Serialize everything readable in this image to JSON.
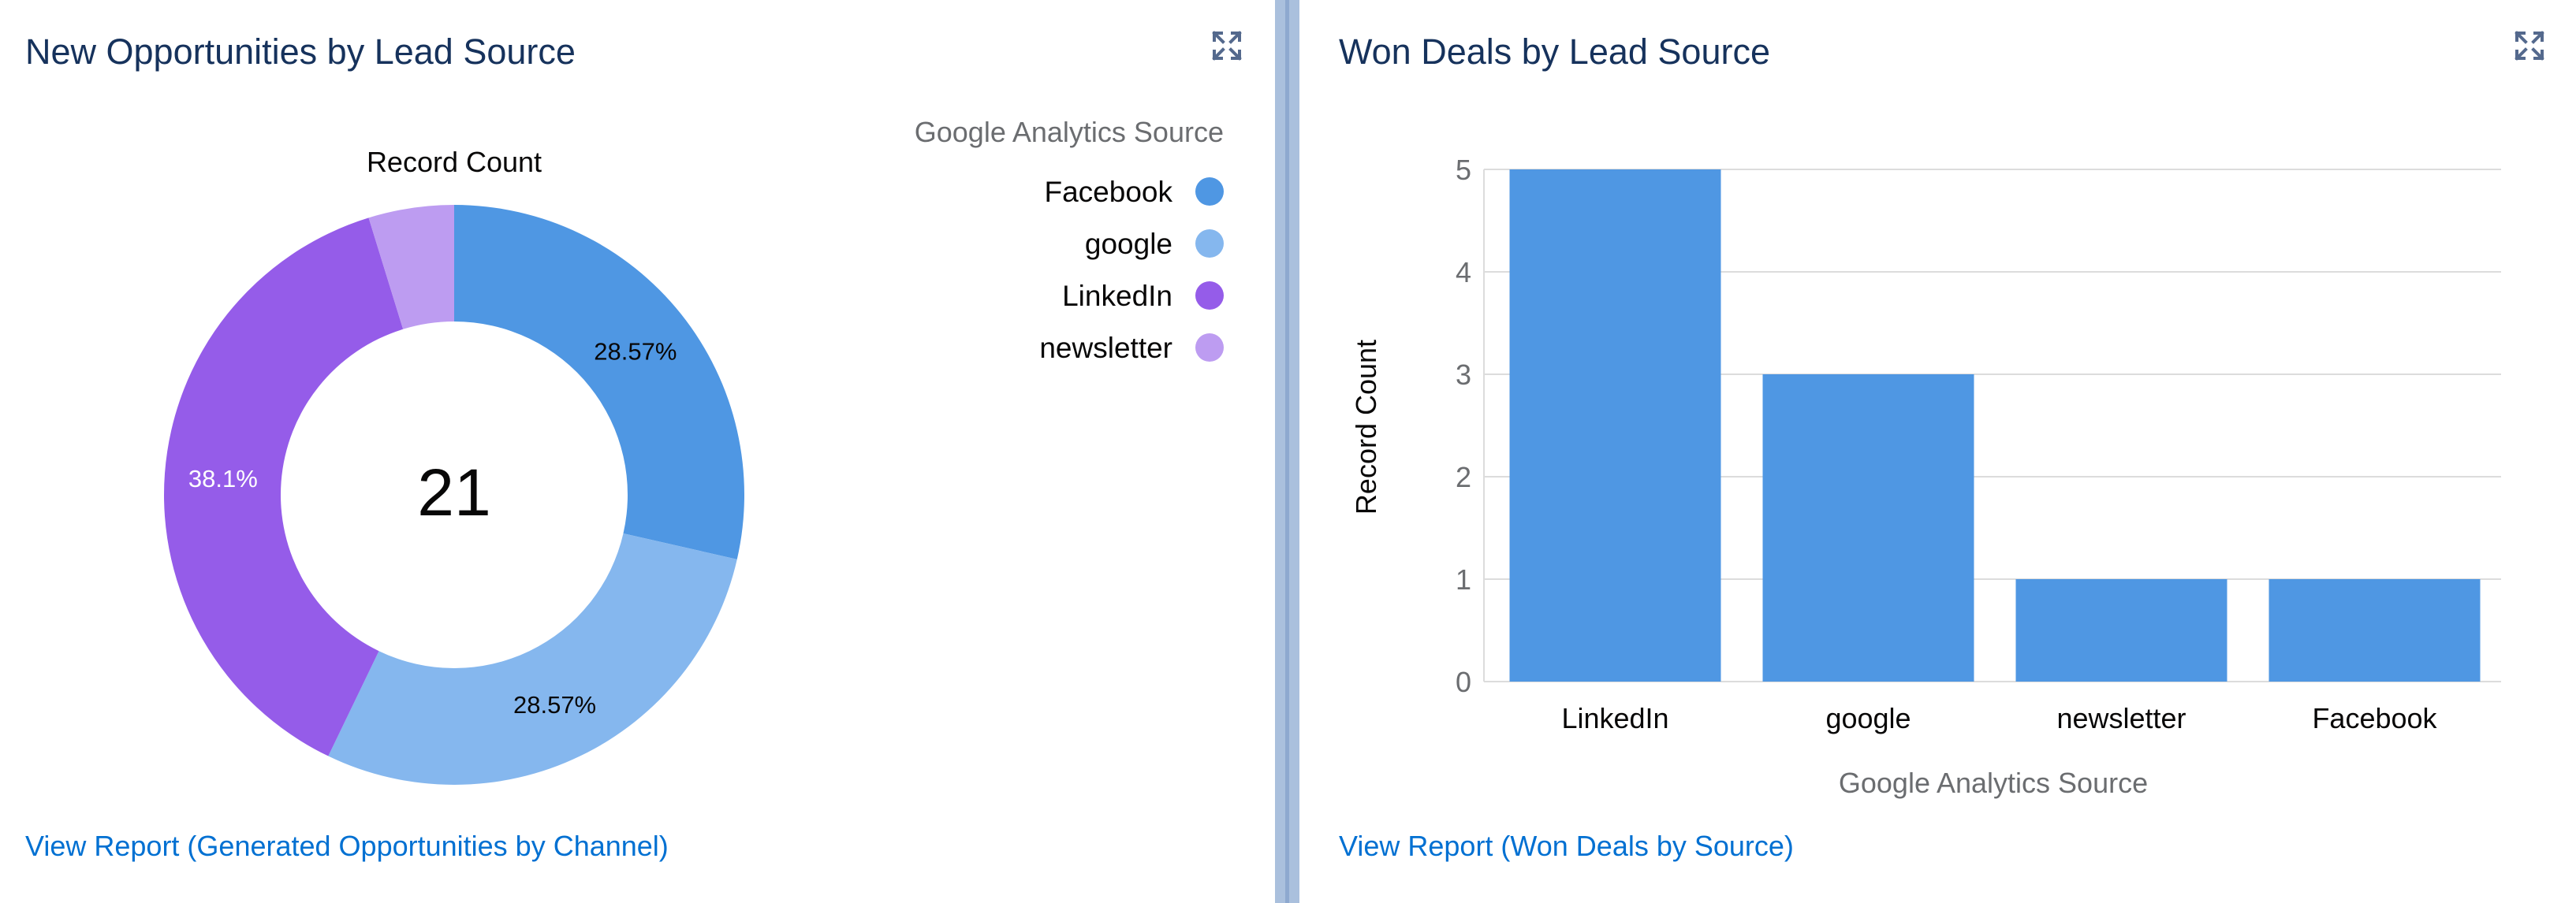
{
  "left_panel": {
    "title": "New Opportunities by Lead Source",
    "expand_icon": "expand-icon",
    "center_total": "21",
    "view_report": "View Report (Generated Opportunities by Channel)"
  },
  "right_panel": {
    "title": "Won Deals by Lead Source",
    "expand_icon": "expand-icon",
    "view_report": "View Report (Won Deals by Source)"
  },
  "colors": {
    "title": "#16325c",
    "link": "#0070d2",
    "facebook": "#4f97e3",
    "google": "#85b7ee",
    "linkedin": "#955ce9",
    "newsletter": "#bd9cf1",
    "bar": "#4f97e3"
  },
  "chart_data": [
    {
      "type": "pie",
      "variant": "donut",
      "title": "Record Count",
      "legend_title": "Google Analytics Source",
      "legend_position": "top-right",
      "center_label": "21",
      "slices": [
        {
          "label": "Facebook",
          "value": 6,
          "pct_label": "28.57%",
          "color": "#4f97e3"
        },
        {
          "label": "google",
          "value": 6,
          "pct_label": "28.57%",
          "color": "#85b7ee"
        },
        {
          "label": "LinkedIn",
          "value": 8,
          "pct_label": "38.1%",
          "color": "#955ce9"
        },
        {
          "label": "newsletter",
          "value": 1,
          "pct_label": "",
          "color": "#bd9cf1"
        }
      ]
    },
    {
      "type": "bar",
      "categories": [
        "LinkedIn",
        "google",
        "newsletter",
        "Facebook"
      ],
      "values": [
        5,
        3,
        1,
        1
      ],
      "xlabel": "Google Analytics Source",
      "ylabel": "Record Count",
      "ylim": [
        0,
        5
      ],
      "yticks": [
        0,
        1,
        2,
        3,
        4,
        5
      ],
      "grid": true,
      "color": "#4f97e3"
    }
  ]
}
